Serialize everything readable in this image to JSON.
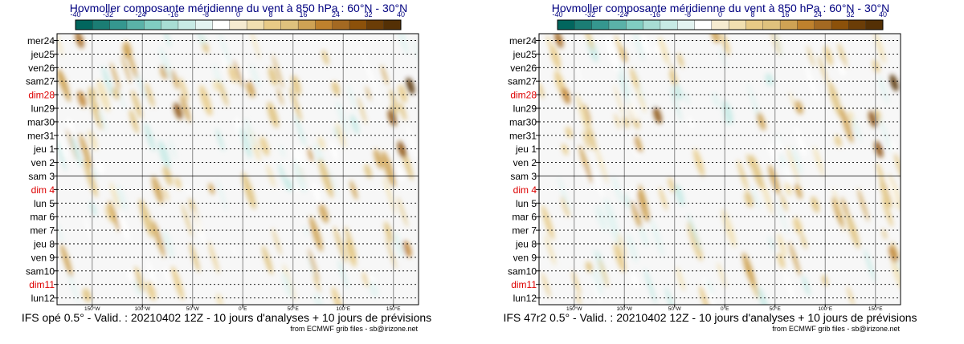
{
  "panels": [
    {
      "title": "Hovmoller composante méridienne du vent à 850 hPa : 60°N - 30°N",
      "footer": "IFS opé 0.5° - Valid. : 20210402 12Z - 10 jours d'analyses + 10 jours de prévisions",
      "credit": "from ECMWF grib files - sb@irizone.net"
    },
    {
      "title": "Hovmoller composante méridienne du vent à 850 hPa : 60°N - 30°N",
      "footer": "IFS 47r2 0.5° - Valid. : 20210402 12Z - 10 jours d'analyses + 10 jours de prévisions",
      "credit": "from ECMWF grib files - sb@irizone.net"
    }
  ],
  "chart_data": {
    "type": "heatmap",
    "variable": "meridional wind 850 hPa",
    "colorbar": {
      "ticks": [
        "-40",
        "-32",
        "-24",
        "-16",
        "-8",
        "0",
        "8",
        "16",
        "24",
        "32",
        "40"
      ],
      "colors": [
        "#01665e",
        "#1b7d74",
        "#35978f",
        "#5ab2a8",
        "#80cdc1",
        "#a8ddd4",
        "#c7eae5",
        "#e3f3f1",
        "#ffffff",
        "#f6ebd0",
        "#f1dfb0",
        "#e8ca86",
        "#dfc27d",
        "#cfa254",
        "#bf812d",
        "#a46922",
        "#8c510a",
        "#6b3d07",
        "#543005"
      ]
    },
    "x_ticks": [
      "150°W",
      "100°W",
      "50°W",
      "0°E",
      "50°E",
      "100°E",
      "150°E"
    ],
    "y_labels": [
      {
        "label": "mer24",
        "weekend": false
      },
      {
        "label": "jeu25",
        "weekend": false
      },
      {
        "label": "ven26",
        "weekend": false
      },
      {
        "label": "sam27",
        "weekend": false
      },
      {
        "label": "dim28",
        "weekend": true
      },
      {
        "label": "lun29",
        "weekend": false
      },
      {
        "label": "mar30",
        "weekend": false
      },
      {
        "label": "mer31",
        "weekend": false
      },
      {
        "label": "jeu 1",
        "weekend": false
      },
      {
        "label": "ven 2",
        "weekend": false
      },
      {
        "label": "sam 3",
        "weekend": false
      },
      {
        "label": "dim 4",
        "weekend": true
      },
      {
        "label": "lun 5",
        "weekend": false
      },
      {
        "label": "mar 6",
        "weekend": false
      },
      {
        "label": "mer 7",
        "weekend": false
      },
      {
        "label": "jeu 8",
        "weekend": false
      },
      {
        "label": "ven 9",
        "weekend": false
      },
      {
        "label": "sam10",
        "weekend": false
      },
      {
        "label": "dim11",
        "weekend": true
      },
      {
        "label": "lun12",
        "weekend": false
      }
    ],
    "analysis_boundary": "sam 3",
    "colors": {
      "weekend": "#dd0000",
      "title": "#000080",
      "text": "#000000"
    }
  }
}
